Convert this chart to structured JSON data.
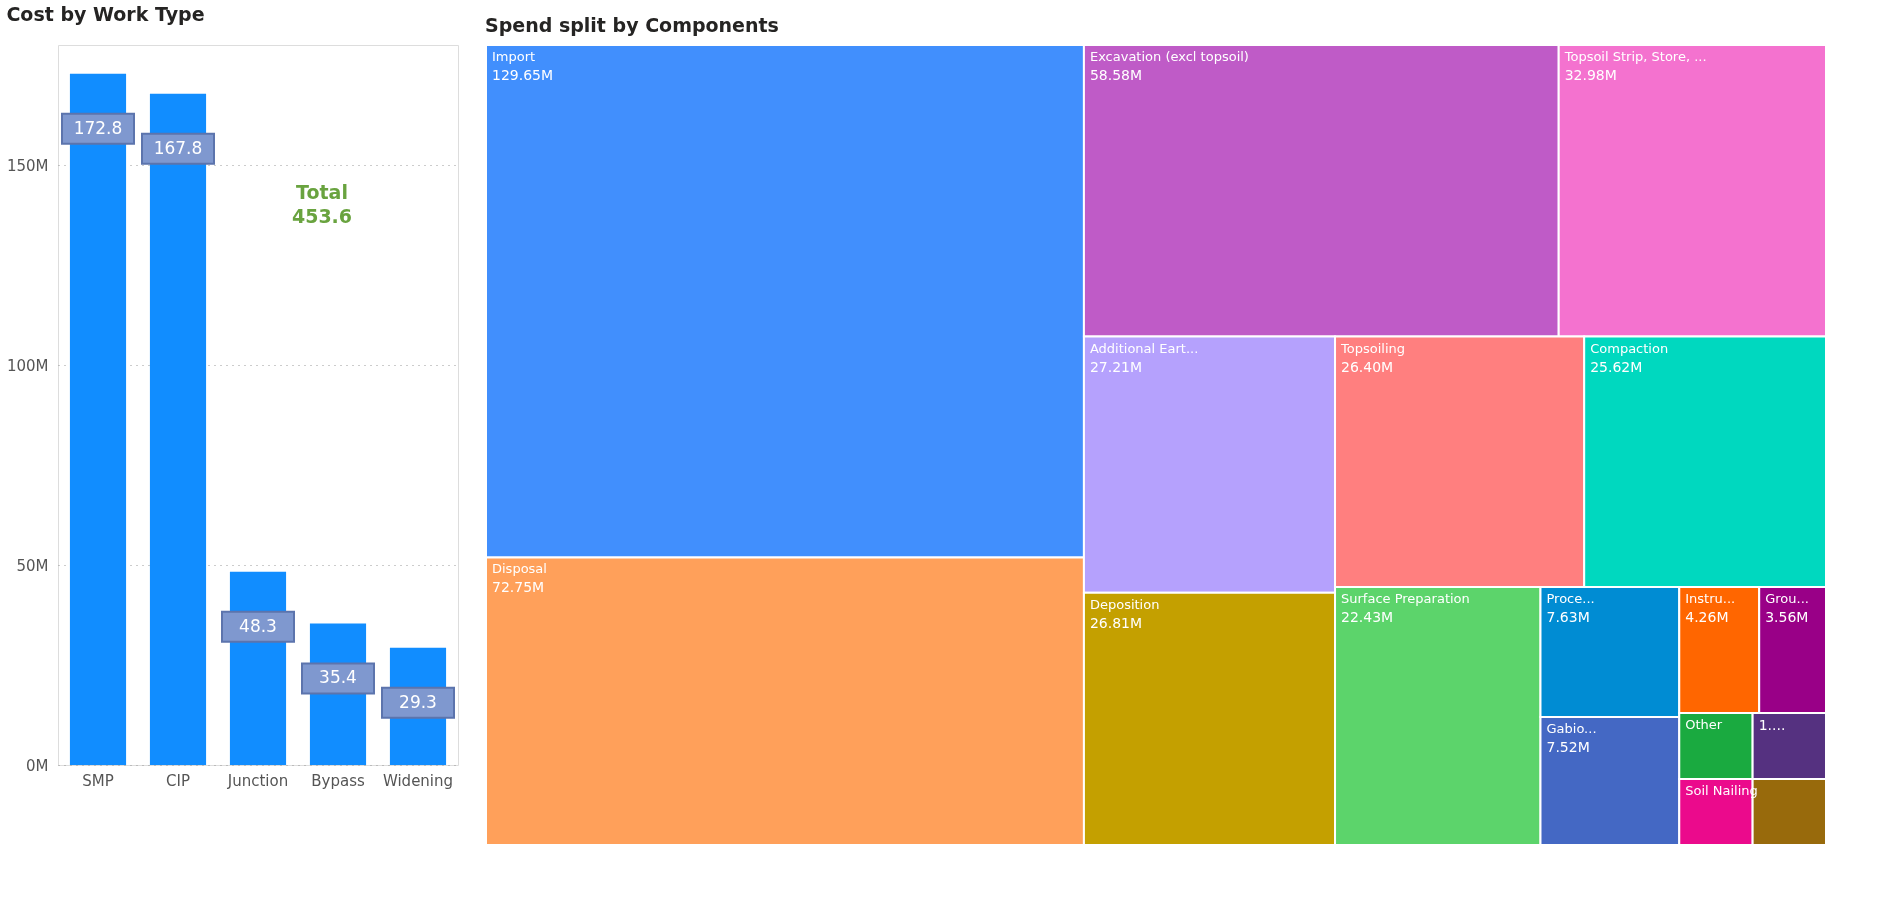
{
  "chart_data": [
    {
      "type": "bar",
      "title": "Cost by Work Type",
      "categories": [
        "SMP",
        "CIP",
        "Junction",
        "Bypass",
        "Widening"
      ],
      "values": [
        172.8,
        167.8,
        48.3,
        35.4,
        29.3
      ],
      "color": "#118dff",
      "value_labels": [
        "172.8",
        "167.8",
        "48.3",
        "35.4",
        "29.3"
      ],
      "ylim": [
        0,
        180
      ],
      "yticks": [
        {
          "value": 0,
          "label": "0M"
        },
        {
          "value": 50,
          "label": "50M"
        },
        {
          "value": 100,
          "label": "100M"
        },
        {
          "value": 150,
          "label": "150M"
        }
      ],
      "grid": "y",
      "annotations": [
        "Total\n453.6"
      ]
    },
    {
      "type": "other",
      "title": "Spend split by Components",
      "categories": [
        "Import",
        "Disposal",
        "Excavation (excl topsoil)",
        "Topsoil Strip, Store, ...",
        "Additional Eart...",
        "Deposition",
        "Topsoiling",
        "Compaction",
        "Surface Preparation",
        "Proce...",
        "Gabio...",
        "Instru...",
        "Grou...",
        "Other",
        "Soil Nailing",
        null,
        null
      ],
      "values": [
        129.65,
        72.75,
        58.58,
        32.98,
        27.21,
        26.81,
        26.4,
        25.62,
        22.43,
        7.63,
        7.52,
        4.26,
        3.56,
        null,
        null,
        null,
        null
      ],
      "value_labels": [
        "129.65M",
        "72.75M",
        "58.58M",
        "32.98M",
        "27.21M",
        "26.81M",
        "26.40M",
        "25.62M",
        "22.43M",
        "7.63M",
        "7.52M",
        "4.26M",
        "3.56M",
        null,
        null,
        "1....",
        null
      ],
      "colors": [
        "#418ffd",
        "#ffa05a",
        "#bf5bc7",
        "#f472cf",
        "#b5a1fd",
        "#c4a000",
        "#ff7f7f",
        "#00d8bf",
        "#5cd46b",
        "#008cd3",
        "#4468c4",
        "#ff6600",
        "#990087",
        "#1aaa40",
        "#eb0a8c",
        "#553180",
        "#986a0c"
      ]
    }
  ]
}
